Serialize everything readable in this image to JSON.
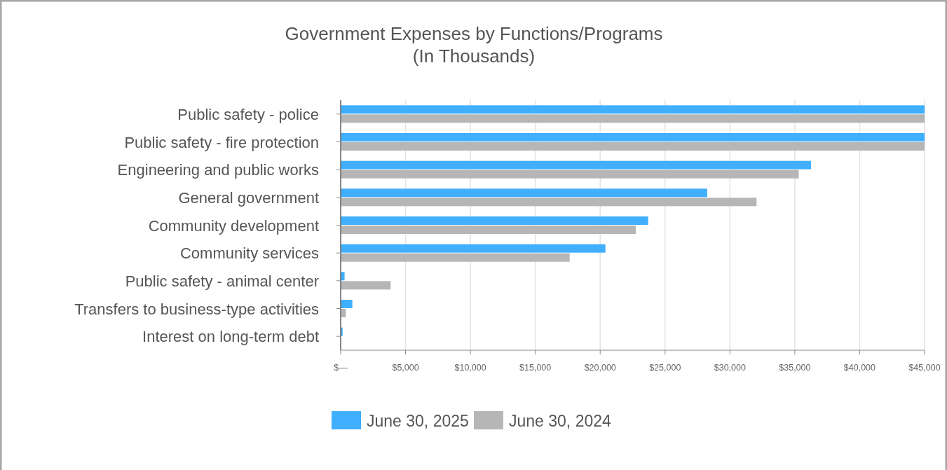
{
  "chart_data": {
    "type": "bar",
    "orientation": "horizontal",
    "title": "Government Expenses by Functions/Programs\n(In Thousands)",
    "categories": [
      "Public safety - police",
      "Public safety - fire protection",
      "Engineering and public works",
      "General government",
      "Community development",
      "Community services",
      "Public safety - animal center",
      "Transfers to business-type activities",
      "Interest on long-term debt"
    ],
    "series": [
      {
        "name": "June 30, 2025",
        "color": "#40affe",
        "values": [
          45000,
          45000,
          36250,
          28250,
          23700,
          20400,
          300,
          900,
          150
        ]
      },
      {
        "name": "June 30, 2024",
        "color": "#b6b6b6",
        "values": [
          45000,
          45000,
          35300,
          32050,
          22750,
          17650,
          3850,
          400,
          null
        ]
      }
    ],
    "xlim": [
      0,
      45000
    ],
    "xticks": [
      {
        "value": 0,
        "label": "$—"
      },
      {
        "value": 5000,
        "label": "$5,000"
      },
      {
        "value": 10000,
        "label": "$10,000"
      },
      {
        "value": 15000,
        "label": "$15,000"
      },
      {
        "value": 20000,
        "label": "$20,000"
      },
      {
        "value": 25000,
        "label": "$25,000"
      },
      {
        "value": 30000,
        "label": "$30,000"
      },
      {
        "value": 35000,
        "label": "$35,000"
      },
      {
        "value": 40000,
        "label": "$40,000"
      },
      {
        "value": 45000,
        "label": "$45,000"
      }
    ],
    "grid": "x",
    "legend": "bottom"
  }
}
